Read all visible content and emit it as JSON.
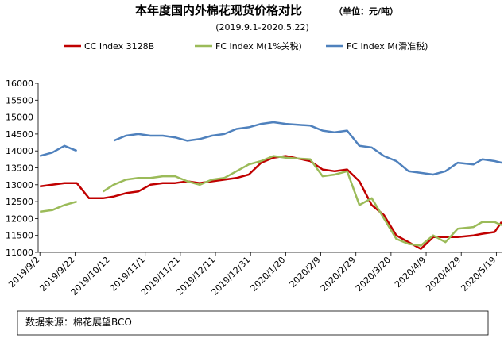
{
  "chart_data": {
    "type": "line",
    "title": "本年度国内外棉花现货价格对比",
    "unit_note": "（单位：元/吨）",
    "subtitle": "(2019.9.1-2020.5.22)",
    "source": "数据来源：棉花展望BCO",
    "x": [
      "2019/9/2",
      "2019/9/9",
      "2019/9/16",
      "2019/9/23",
      "2019/9/30",
      "2019/10/8",
      "2019/10/14",
      "2019/10/21",
      "2019/10/28",
      "2019/11/4",
      "2019/11/11",
      "2019/11/18",
      "2019/11/25",
      "2019/12/2",
      "2019/12/9",
      "2019/12/16",
      "2019/12/23",
      "2019/12/30",
      "2020/1/6",
      "2020/1/13",
      "2020/1/20",
      "2020/2/3",
      "2020/2/10",
      "2020/2/17",
      "2020/2/24",
      "2020/3/2",
      "2020/3/9",
      "2020/3/16",
      "2020/3/23",
      "2020/3/30",
      "2020/4/6",
      "2020/4/13",
      "2020/4/20",
      "2020/4/27",
      "2020/5/6",
      "2020/5/11",
      "2020/5/18",
      "2020/5/22"
    ],
    "series": [
      {
        "name": "CC Index 3128B",
        "color": "#c00000",
        "values": [
          12950,
          13000,
          13050,
          13050,
          12600,
          12600,
          12650,
          12750,
          12800,
          13000,
          13050,
          13050,
          13100,
          13050,
          13100,
          13150,
          13200,
          13300,
          13650,
          13800,
          13850,
          13700,
          13450,
          13400,
          13450,
          13100,
          12400,
          12100,
          11500,
          11300,
          11100,
          11450,
          11450,
          11450,
          11500,
          11550,
          11600,
          11900
        ]
      },
      {
        "name": "FC Index M(1%关税)",
        "color": "#9bbb59",
        "values": [
          12200,
          12250,
          12400,
          12500,
          null,
          12800,
          13000,
          13150,
          13200,
          13200,
          13250,
          13250,
          13100,
          13000,
          13150,
          13200,
          13400,
          13600,
          13700,
          13850,
          13800,
          13750,
          13250,
          13300,
          13400,
          12400,
          12600,
          12000,
          11400,
          11250,
          11200,
          11500,
          11300,
          11700,
          11750,
          11900,
          11900,
          11800
        ]
      },
      {
        "name": "FC Index M(滑准税)",
        "color": "#4f81bd",
        "values": [
          13850,
          13950,
          14150,
          14000,
          null,
          null,
          14300,
          14450,
          14500,
          14450,
          14450,
          14400,
          14300,
          14350,
          14450,
          14500,
          14650,
          14700,
          14800,
          14850,
          14800,
          14750,
          14600,
          14550,
          14600,
          14150,
          14100,
          13850,
          13700,
          13400,
          13350,
          13300,
          13400,
          13650,
          13600,
          13750,
          13700,
          13650
        ]
      }
    ],
    "xlim": [
      "2019/9/1",
      "2020/5/22"
    ],
    "xticks": [
      "2019/9/2",
      "2019/9/22",
      "2019/10/12",
      "2019/11/1",
      "2019/11/21",
      "2019/12/11",
      "2019/12/31",
      "2020/1/20",
      "2020/2/9",
      "2020/2/29",
      "2020/3/20",
      "2020/4/9",
      "2020/4/29",
      "2020/5/19"
    ],
    "ylim": [
      11000,
      16000
    ],
    "yticks": [
      11000,
      11500,
      12000,
      12500,
      13000,
      13500,
      14000,
      14500,
      15000,
      15500,
      16000
    ]
  }
}
